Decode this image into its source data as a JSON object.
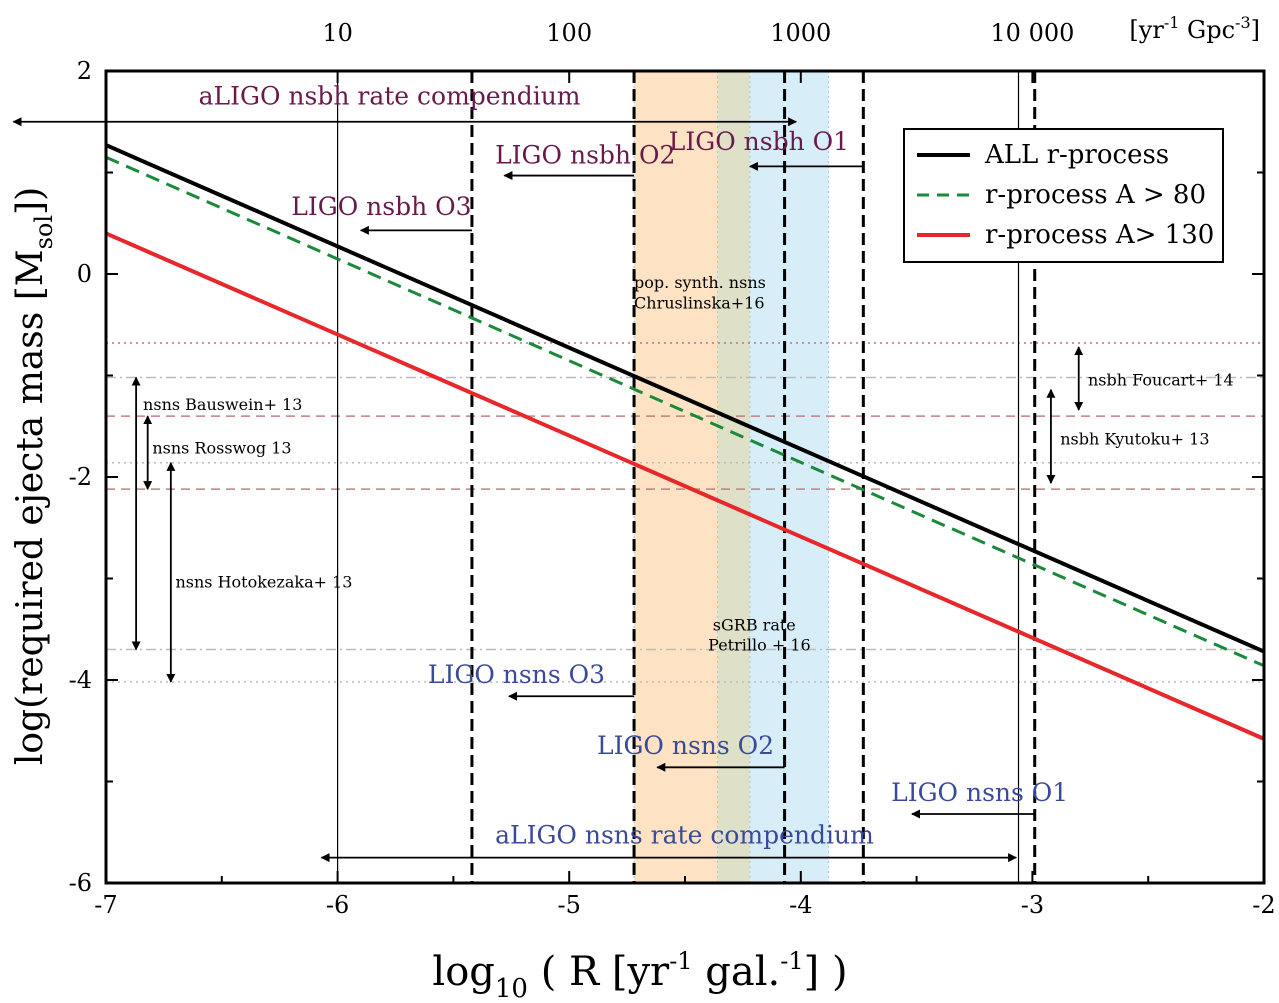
{
  "chart_data": {
    "type": "line",
    "xlabel_main": "log",
    "xlabel_sub": "10",
    "xlabel_mid": " ( R [yr",
    "xlabel_sup1": "-1",
    "xlabel_mid2": " gal.",
    "xlabel_sup2": "-1",
    "xlabel_end": "] )",
    "ylabel_main": "log(required ejecta mass [M",
    "ylabel_sub": "sol",
    "ylabel_end": "])",
    "xlim": [
      -7,
      -2
    ],
    "ylim": [
      -6,
      2
    ],
    "x_ticks": [
      -7,
      -6,
      -5,
      -4,
      -3,
      -2
    ],
    "y_ticks": [
      -6,
      -4,
      -2,
      0,
      2
    ],
    "top_axis": {
      "unit_prefix": "[yr",
      "unit_sup1": "-1",
      "unit_mid": " Gpc",
      "unit_sup2": "-3",
      "unit_end": "]",
      "ticks": [
        {
          "label": "10",
          "x": -6.0
        },
        {
          "label": "100",
          "x": -5.0
        },
        {
          "label": "1000",
          "x": -4.0
        },
        {
          "label": "10 000",
          "x": -3.0
        }
      ]
    },
    "series": [
      {
        "name": "ALL r-process",
        "x": [
          -7,
          -2
        ],
        "y": [
          1.27,
          -3.72
        ],
        "color": "#000000",
        "style": "solid"
      },
      {
        "name": "r-process A > 80",
        "x": [
          -7,
          -2
        ],
        "y": [
          1.15,
          -3.86
        ],
        "color": "#1a8a3a",
        "style": "dashed"
      },
      {
        "name": "r-process A> 130",
        "x": [
          -7,
          -2
        ],
        "y": [
          0.4,
          -4.58
        ],
        "color": "#e8272a",
        "style": "solid"
      }
    ],
    "bands": [
      {
        "x0": -4.72,
        "x1": -4.36,
        "color": "#fde3c4"
      },
      {
        "x0": -4.36,
        "x1": -4.22,
        "color": "#dfe0c8"
      },
      {
        "x0": -4.22,
        "x1": -3.88,
        "color": "#d7eef8"
      }
    ],
    "vlines_dashed": [
      -5.42,
      -4.72,
      -4.07,
      -3.73,
      -2.99
    ],
    "vlines_solid": [
      -6.0,
      -3.06
    ],
    "hlines": [
      {
        "y": -0.68,
        "color": "#c07090",
        "style": "dotted"
      },
      {
        "y": -1.02,
        "color": "#bbbbbb",
        "style": "dashdot"
      },
      {
        "y": -1.4,
        "color": "#c08080",
        "style": "dashed"
      },
      {
        "y": -1.86,
        "color": "#bbbbbb",
        "style": "dotted"
      },
      {
        "y": -2.12,
        "color": "#c08080",
        "style": "dashed"
      },
      {
        "y": -3.7,
        "color": "#bbbbbb",
        "style": "dashdot"
      },
      {
        "y": -4.02,
        "color": "#bbbbbb",
        "style": "dotted"
      }
    ],
    "arrows": [
      {
        "x1": -4.02,
        "y1": 1.5,
        "x2": -7.4,
        "y2": 1.5,
        "double": true
      },
      {
        "x1": -4.72,
        "y1": 0.97,
        "x2": -5.28,
        "y2": 0.97,
        "double": false
      },
      {
        "x1": -3.73,
        "y1": 1.06,
        "x2": -4.22,
        "y2": 1.06,
        "double": false
      },
      {
        "x1": -5.42,
        "y1": 0.43,
        "x2": -5.9,
        "y2": 0.43,
        "double": false
      },
      {
        "x1": -4.72,
        "y1": -4.16,
        "x2": -5.26,
        "y2": -4.16,
        "double": false
      },
      {
        "x1": -4.07,
        "y1": -4.86,
        "x2": -4.62,
        "y2": -4.86,
        "double": false
      },
      {
        "x1": -2.99,
        "y1": -5.32,
        "x2": -3.52,
        "y2": -5.32,
        "double": false
      },
      {
        "x1": -6.07,
        "y1": -5.75,
        "x2": -3.07,
        "y2": -5.75,
        "double": true
      },
      {
        "x1": -6.87,
        "y1": -1.02,
        "x2": -6.87,
        "y2": -3.7,
        "double": true
      },
      {
        "x1": -6.82,
        "y1": -1.4,
        "x2": -6.82,
        "y2": -2.12,
        "double": true
      },
      {
        "x1": -6.72,
        "y1": -1.86,
        "x2": -6.72,
        "y2": -4.02,
        "double": true
      },
      {
        "x1": -2.8,
        "y1": -0.72,
        "x2": -2.8,
        "y2": -1.34,
        "double": true
      },
      {
        "x1": -2.92,
        "y1": -1.14,
        "x2": -2.92,
        "y2": -2.06,
        "double": true
      }
    ],
    "annotations": [
      {
        "text": "aLIGO nsbh rate compendium",
        "x": -6.6,
        "y": 1.67,
        "color": "#6a1a4a",
        "size": 25,
        "anchor": "start"
      },
      {
        "text": "LIGO nsbh O2",
        "x": -5.32,
        "y": 1.09,
        "color": "#6a1a4a",
        "size": 25,
        "anchor": "start"
      },
      {
        "text": "LIGO nsbh O1",
        "x": -4.57,
        "y": 1.22,
        "color": "#6a1a4a",
        "size": 25,
        "anchor": "start"
      },
      {
        "text": "LIGO nsbh O3",
        "x": -6.2,
        "y": 0.58,
        "color": "#6a1a4a",
        "size": 25,
        "anchor": "start"
      },
      {
        "text": "pop. synth. nsns",
        "x": -4.72,
        "y": -0.14,
        "color": "#000000",
        "size": 16,
        "anchor": "start"
      },
      {
        "text": "Chruslinska+16",
        "x": -4.72,
        "y": -0.34,
        "color": "#000000",
        "size": 16,
        "anchor": "start"
      },
      {
        "text": "nsns Bauswein+ 13",
        "x": -6.84,
        "y": -1.34,
        "color": "#000000",
        "size": 16,
        "anchor": "start"
      },
      {
        "text": "nsns Rosswog 13",
        "x": -6.8,
        "y": -1.77,
        "color": "#000000",
        "size": 16,
        "anchor": "start"
      },
      {
        "text": "nsns Hotokezaka+ 13",
        "x": -6.7,
        "y": -3.09,
        "color": "#000000",
        "size": 16,
        "anchor": "start"
      },
      {
        "text": "nsbh Foucart+ 14",
        "x": -2.76,
        "y": -1.1,
        "color": "#000000",
        "size": 16,
        "anchor": "start"
      },
      {
        "text": "nsbh Kyutoku+ 13",
        "x": -2.88,
        "y": -1.68,
        "color": "#000000",
        "size": 16,
        "anchor": "start"
      },
      {
        "text": "sGRB  rate",
        "x": -4.38,
        "y": -3.51,
        "color": "#000000",
        "size": 16,
        "anchor": "start"
      },
      {
        "text": "Petrillo + 16",
        "x": -4.4,
        "y": -3.71,
        "color": "#000000",
        "size": 16,
        "anchor": "start"
      },
      {
        "text": "LIGO nsns O3",
        "x": -5.61,
        "y": -4.03,
        "color": "#3a4a9a",
        "size": 25,
        "anchor": "start"
      },
      {
        "text": "LIGO nsns O2",
        "x": -4.88,
        "y": -4.73,
        "color": "#3a4a9a",
        "size": 25,
        "anchor": "start"
      },
      {
        "text": "LIGO nsns O1",
        "x": -3.61,
        "y": -5.19,
        "color": "#3a4a9a",
        "size": 25,
        "anchor": "start"
      },
      {
        "text": "aLIGO nsns rate compendium",
        "x": -5.32,
        "y": -5.61,
        "color": "#3a4a9a",
        "size": 25,
        "anchor": "start"
      }
    ],
    "legend_position": "top-right"
  }
}
